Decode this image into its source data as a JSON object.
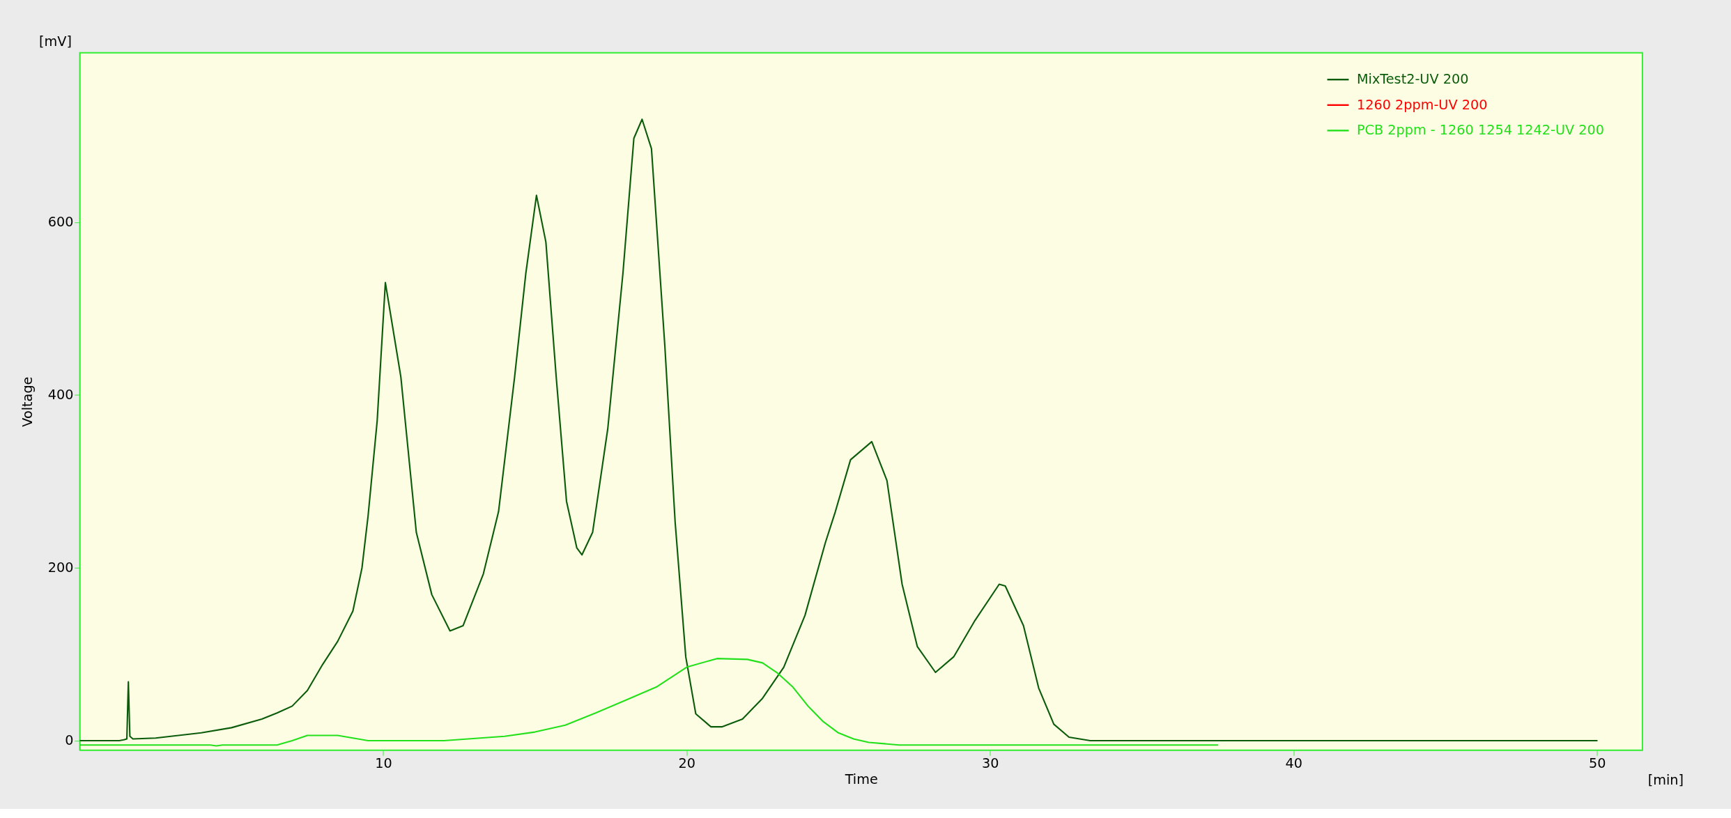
{
  "chart_data": {
    "type": "line",
    "xlabel": "Time",
    "ylabel": "Voltage",
    "annotations": [
      "[mV]",
      "[min]"
    ],
    "xlim": [
      0,
      51.5
    ],
    "xticks": [
      10,
      20,
      30,
      40,
      50
    ],
    "ylim": [
      -11,
      796
    ],
    "yticks": [
      0,
      200,
      400,
      600
    ],
    "grid": false,
    "legend": "top right",
    "line_style": "solid",
    "marker": "none",
    "series": [
      {
        "name": "MixTest2-UV 200",
        "color": "#0a5c0a",
        "x": [
          0,
          1.3,
          1.45,
          1.55,
          1.6,
          1.65,
          1.75,
          2.5,
          3,
          4,
          5,
          6,
          6.5,
          7,
          7.5,
          8,
          8.5,
          9,
          9.3,
          9.5,
          9.8,
          10.07,
          10.58,
          11.09,
          11.6,
          12.2,
          12.63,
          13.3,
          13.8,
          14.33,
          14.7,
          15.05,
          15.36,
          15.7,
          16.04,
          16.38,
          16.55,
          16.9,
          17.4,
          17.9,
          18.26,
          18.53,
          18.84,
          19.28,
          19.62,
          19.97,
          20.3,
          20.8,
          21.16,
          21.84,
          22.5,
          23.2,
          23.9,
          24.57,
          24.9,
          25.4,
          26.1,
          26.6,
          27.1,
          27.6,
          28.2,
          28.8,
          29.5,
          30.3,
          30.5,
          31.1,
          31.6,
          32.1,
          32.6,
          33.3,
          50
        ],
        "values": [
          0,
          0,
          1,
          2,
          68,
          5,
          2,
          3,
          5,
          9,
          15,
          25,
          32,
          40,
          58,
          88,
          115,
          150,
          200,
          260,
          370,
          530,
          421,
          241,
          169,
          127,
          133,
          193,
          265,
          421,
          541,
          631,
          577,
          421,
          277,
          223,
          215,
          241,
          361,
          541,
          697,
          719,
          685,
          457,
          253,
          97,
          31,
          16,
          16,
          25,
          49,
          85,
          145,
          229,
          265,
          325,
          346,
          301,
          181,
          109,
          79,
          97,
          139,
          181,
          179,
          133,
          61,
          19,
          4,
          0,
          0
        ]
      },
      {
        "name": "1260 2ppm-UV 200",
        "color": "#ff0000"
      },
      {
        "name": "PCB 2ppm - 1260 1254 1242-UV 200",
        "color": "#22e01a",
        "x": [
          0,
          4.3,
          4.5,
          4.7,
          6.5,
          7,
          7.5,
          8.5,
          9,
          9.5,
          12,
          14,
          15,
          16,
          17,
          18,
          19,
          20,
          21,
          22,
          22.5,
          23,
          23.5,
          24,
          24.5,
          25,
          25.5,
          26,
          27,
          37.5
        ],
        "values": [
          -5,
          -5,
          -6,
          -5,
          -5,
          0,
          6,
          6,
          3,
          0,
          0,
          5,
          10,
          18,
          32,
          47,
          62,
          85,
          95,
          94,
          90,
          78,
          62,
          40,
          22,
          9,
          2,
          -2,
          -5,
          -5
        ]
      }
    ]
  }
}
